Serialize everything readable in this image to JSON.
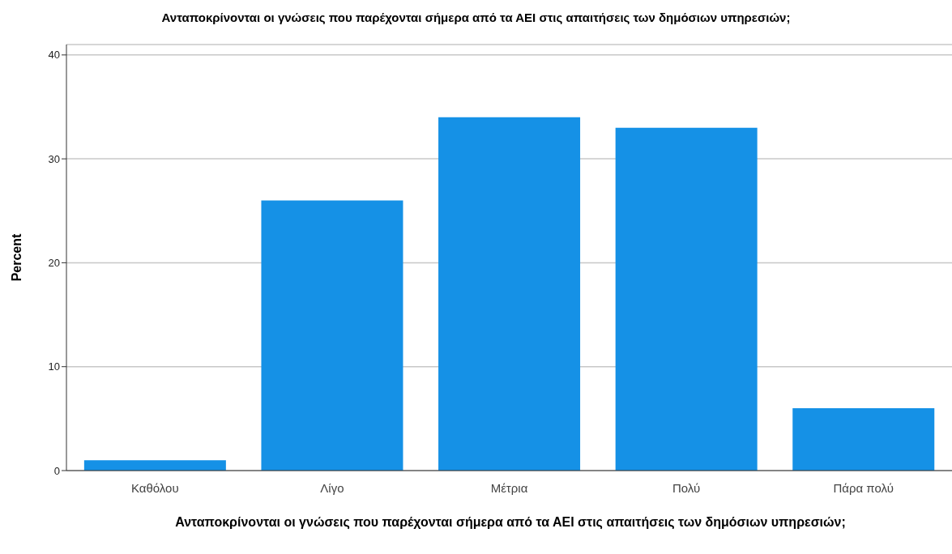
{
  "chart_data": {
    "type": "bar",
    "title": "Ανταποκρίνονται οι γνώσεις που παρέχονται σήμερα από τα ΑΕΙ στις απαιτήσεις των δημόσιων υπηρεσιών;",
    "xlabel": "Ανταποκρίνονται οι γνώσεις που παρέχονται σήμερα από τα ΑΕΙ στις απαιτήσεις των δημόσιων υπηρεσιών;",
    "ylabel": "Percent",
    "categories": [
      "Καθόλου",
      "Λίγο",
      "Μέτρια",
      "Πολύ",
      "Πάρα πολύ"
    ],
    "values": [
      1,
      26,
      34,
      33,
      6
    ],
    "color": "#1591e6",
    "ylim": [
      0,
      41
    ],
    "yticks": [
      0,
      10,
      20,
      30,
      40
    ],
    "grid": "y"
  }
}
